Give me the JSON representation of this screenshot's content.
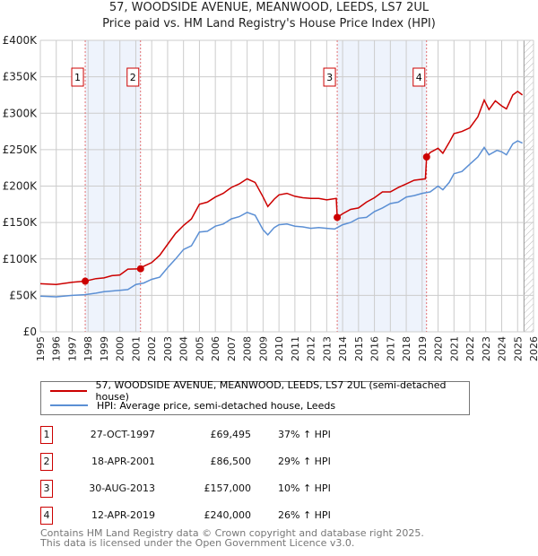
{
  "chart_data": {
    "type": "line",
    "title": "57, WOODSIDE AVENUE, MEANWOOD, LEEDS, LS7 2UL",
    "subtitle": "Price paid vs. HM Land Registry's House Price Index (HPI)",
    "xlim": [
      1995,
      2026
    ],
    "ylim": [
      0,
      400000
    ],
    "x_ticks": [
      "1995",
      "1996",
      "1997",
      "1998",
      "1999",
      "2000",
      "2001",
      "2002",
      "2003",
      "2004",
      "2005",
      "2006",
      "2007",
      "2008",
      "2009",
      "2010",
      "2011",
      "2012",
      "2013",
      "2014",
      "2015",
      "2016",
      "2017",
      "2018",
      "2019",
      "2020",
      "2021",
      "2022",
      "2023",
      "2024",
      "2025",
      "2026"
    ],
    "y_ticks": [
      {
        "v": 0,
        "label": "£0"
      },
      {
        "v": 50000,
        "label": "£50K"
      },
      {
        "v": 100000,
        "label": "£100K"
      },
      {
        "v": 150000,
        "label": "£150K"
      },
      {
        "v": 200000,
        "label": "£200K"
      },
      {
        "v": 250000,
        "label": "£250K"
      },
      {
        "v": 300000,
        "label": "£300K"
      },
      {
        "v": 350000,
        "label": "£350K"
      },
      {
        "v": 400000,
        "label": "£400K"
      }
    ],
    "grid": true,
    "forecast_hatch_from": 2025.4,
    "series": [
      {
        "name": "57, WOODSIDE AVENUE, MEANWOOD, LEEDS, LS7 2UL (semi-detached house)",
        "color": "#cc0000",
        "x": [
          1995,
          1996,
          1997,
          1997.82,
          1998.5,
          1999,
          1999.5,
          2000,
          2000.5,
          2001.3,
          2001.5,
          2002,
          2002.5,
          2003,
          2003.5,
          2004,
          2004.5,
          2005,
          2005.5,
          2006,
          2006.5,
          2007,
          2007.5,
          2008,
          2008.5,
          2009,
          2009.3,
          2009.7,
          2010,
          2010.5,
          2011,
          2011.5,
          2012,
          2012.5,
          2013,
          2013.6,
          2013.66,
          2014,
          2014.5,
          2015,
          2015.5,
          2016,
          2016.5,
          2017,
          2017.5,
          2018,
          2018.5,
          2019.2,
          2019.28,
          2019.5,
          2020,
          2020.3,
          2020.7,
          2021,
          2021.5,
          2022,
          2022.5,
          2022.9,
          2023.2,
          2023.6,
          2024,
          2024.3,
          2024.7,
          2025,
          2025.3
        ],
        "y": [
          66000,
          65000,
          68000,
          69495,
          73000,
          74000,
          77000,
          78000,
          86000,
          86500,
          90000,
          95000,
          105000,
          120000,
          135000,
          146000,
          155000,
          175000,
          178000,
          185000,
          190000,
          198000,
          203000,
          210000,
          205000,
          185000,
          172000,
          182000,
          188000,
          190000,
          186000,
          184000,
          183000,
          183000,
          181000,
          183000,
          157000,
          162000,
          168000,
          170000,
          178000,
          184000,
          192000,
          192000,
          198000,
          203000,
          208000,
          210000,
          240000,
          246000,
          252000,
          245000,
          260000,
          272000,
          275000,
          280000,
          295000,
          318000,
          305000,
          317000,
          310000,
          306000,
          325000,
          330000,
          325000
        ]
      },
      {
        "name": "HPI: Average price, semi-detached house, Leeds",
        "color": "#5b8fd4",
        "x": [
          1995,
          1996,
          1997,
          1997.8,
          1998.5,
          1999,
          2000,
          2000.5,
          2001,
          2001.5,
          2002,
          2002.5,
          2003,
          2003.5,
          2004,
          2004.5,
          2005,
          2005.5,
          2006,
          2006.5,
          2007,
          2007.5,
          2008,
          2008.5,
          2009,
          2009.3,
          2009.7,
          2010,
          2010.5,
          2011,
          2011.5,
          2012,
          2012.5,
          2013,
          2013.5,
          2014,
          2014.5,
          2015,
          2015.5,
          2016,
          2016.5,
          2017,
          2017.5,
          2018,
          2018.5,
          2019,
          2019.5,
          2020,
          2020.3,
          2020.7,
          2021,
          2021.5,
          2022,
          2022.5,
          2022.9,
          2023.2,
          2023.7,
          2024,
          2024.3,
          2024.7,
          2025,
          2025.3
        ],
        "y": [
          49000,
          48000,
          50000,
          51000,
          53000,
          55000,
          57000,
          58000,
          65000,
          67000,
          72000,
          75000,
          88000,
          100000,
          113000,
          118000,
          137000,
          138000,
          145000,
          148000,
          155000,
          158000,
          164000,
          160000,
          140000,
          133000,
          143000,
          147000,
          148000,
          145000,
          144000,
          142000,
          143000,
          142000,
          141000,
          147000,
          150000,
          156000,
          157000,
          165000,
          170000,
          176000,
          178000,
          185000,
          187000,
          190000,
          192000,
          200000,
          195000,
          205000,
          217000,
          220000,
          230000,
          240000,
          253000,
          243000,
          249000,
          247000,
          243000,
          258000,
          262000,
          259000
        ]
      }
    ],
    "sales": [
      {
        "n": "1",
        "x": 1997.82,
        "price": 69495,
        "date": "27-OCT-1997",
        "price_label": "£69,495",
        "hpi": "37% ↑ HPI"
      },
      {
        "n": "2",
        "x": 2001.3,
        "price": 86500,
        "date": "18-APR-2001",
        "price_label": "£86,500",
        "hpi": "29% ↑ HPI"
      },
      {
        "n": "3",
        "x": 2013.66,
        "price": 157000,
        "date": "30-AUG-2013",
        "price_label": "£157,000",
        "hpi": "10% ↑ HPI"
      },
      {
        "n": "4",
        "x": 2019.28,
        "price": 240000,
        "date": "12-APR-2019",
        "price_label": "£240,000",
        "hpi": "26% ↑ HPI"
      }
    ]
  },
  "footer": {
    "line1": "Contains HM Land Registry data © Crown copyright and database right 2025.",
    "line2": "This data is licensed under the Open Government Licence v3.0."
  }
}
